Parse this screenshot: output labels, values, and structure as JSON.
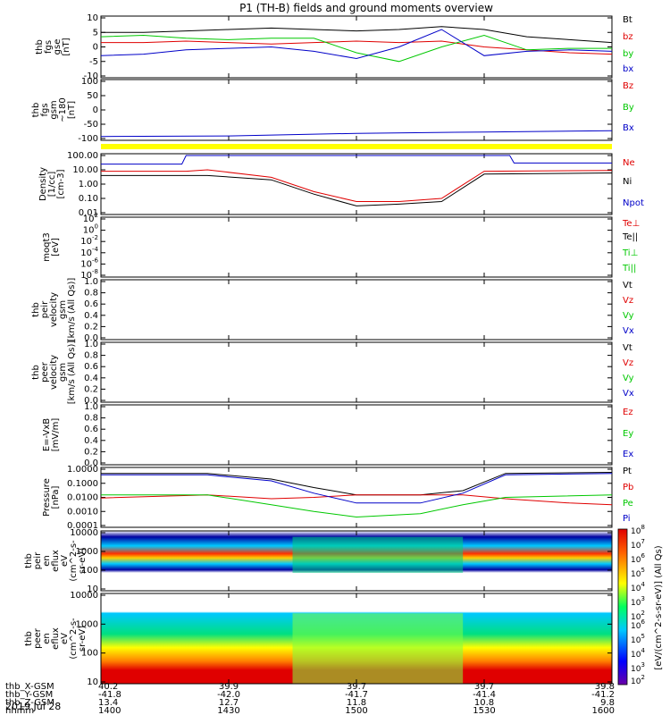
{
  "title": "P1 (TH-B) fields and ground moments overview",
  "date_label": "2019 Jul 28",
  "colorbar": {
    "label": "[eV/(cm^2-s-sr-eV)] (All Qs)",
    "tick_labels": [
      "10^8",
      "10^7",
      "10^6",
      "10^5",
      "10^4",
      "10^3",
      "10^2"
    ]
  },
  "orbit_rows": {
    "labels": [
      "thb_X-GSM",
      "thb_Y-GSM",
      "thb_Z-GSM",
      "hhmm"
    ],
    "columns": [
      [
        "40.2",
        "-41.8",
        "13.4",
        "1400"
      ],
      [
        "39.9",
        "-42.0",
        "12.7",
        "1430"
      ],
      [
        "39.7",
        "-41.7",
        "11.8",
        "1500"
      ],
      [
        "39.7",
        "-41.4",
        "10.8",
        "1530"
      ],
      [
        "39.8",
        "-41.2",
        "9.8",
        "1600"
      ]
    ]
  },
  "colors": {
    "black": "#000000",
    "red": "#e00000",
    "green": "#00c800",
    "blue": "#0000c8",
    "yellow": "#ffff00"
  },
  "chart_data": [
    {
      "type": "line",
      "ylabel_lines": [
        "thb",
        "fgs",
        "gse",
        "[nT]"
      ],
      "ylim": [
        -10,
        10
      ],
      "ticks": [
        "10",
        "5",
        "0",
        "-5",
        "-10"
      ],
      "series": [
        {
          "name": "Bt",
          "color": "black",
          "x": [
            "14:00",
            "14:10",
            "14:20",
            "14:30",
            "14:40",
            "14:50",
            "15:00",
            "15:10",
            "15:20",
            "15:30",
            "15:40",
            "15:50",
            "16:00"
          ],
          "values": [
            5,
            5,
            5.5,
            6,
            6.5,
            6,
            5.5,
            6,
            7,
            6,
            3.5,
            2.5,
            1.5
          ]
        },
        {
          "name": "bz",
          "color": "red",
          "x": [
            "14:00",
            "14:10",
            "14:20",
            "14:30",
            "14:40",
            "14:50",
            "15:00",
            "15:10",
            "15:20",
            "15:30",
            "15:40",
            "15:50",
            "16:00"
          ],
          "values": [
            1.5,
            1.5,
            2,
            1.5,
            1,
            1.5,
            2,
            1.5,
            2,
            0,
            -1,
            -2,
            -2.5
          ]
        },
        {
          "name": "by",
          "color": "green",
          "x": [
            "14:00",
            "14:10",
            "14:20",
            "14:30",
            "14:40",
            "14:50",
            "15:00",
            "15:10",
            "15:20",
            "15:30",
            "15:40",
            "15:50",
            "16:00"
          ],
          "values": [
            3.5,
            4,
            3,
            2.5,
            3,
            3,
            -2,
            -5,
            0,
            4,
            -1,
            -0.5,
            -0.5
          ]
        },
        {
          "name": "bx",
          "color": "blue",
          "x": [
            "14:00",
            "14:10",
            "14:20",
            "14:30",
            "14:40",
            "14:50",
            "15:00",
            "15:10",
            "15:20",
            "15:30",
            "15:40",
            "15:50",
            "16:00"
          ],
          "values": [
            -3,
            -2.5,
            -1,
            -0.5,
            0,
            -1.5,
            -4,
            0,
            6,
            -3,
            -1.5,
            -1,
            -1.5
          ]
        }
      ]
    },
    {
      "type": "line",
      "ylabel_lines": [
        "thb",
        "fgs",
        "gsm",
        "~180",
        "[nT]"
      ],
      "ylim": [
        -120,
        100
      ],
      "ticks": [
        "100",
        "50",
        "0",
        "-50",
        "-100"
      ],
      "series": [
        {
          "name": "Bz",
          "color": "red",
          "x": [
            "14:00",
            "16:00"
          ],
          "values": [
            null,
            null
          ]
        },
        {
          "name": "By",
          "color": "green",
          "x": [
            "14:00",
            "16:00"
          ],
          "values": [
            null,
            null
          ]
        },
        {
          "name": "Bx",
          "color": "blue",
          "x": [
            "14:00",
            "14:30",
            "15:00",
            "15:30",
            "16:00"
          ],
          "values": [
            -112,
            -110,
            -100,
            -95,
            -90
          ]
        }
      ]
    },
    {
      "type": "line",
      "ylabel_lines": [
        "Density",
        "[1/cc]",
        "[cm-3]"
      ],
      "yscale": "log",
      "ylim": [
        0.01,
        100
      ],
      "ticks": [
        "100.00",
        "10.00",
        "1.00",
        "0.10",
        "0.01"
      ],
      "series": [
        {
          "name": "Ne",
          "color": "red",
          "x": [
            "14:00",
            "14:20",
            "14:25",
            "14:40",
            "14:50",
            "15:00",
            "15:10",
            "15:20",
            "15:30",
            "16:00"
          ],
          "values": [
            8,
            8,
            10,
            3,
            0.3,
            0.06,
            0.06,
            0.1,
            8,
            9
          ]
        },
        {
          "name": "Ni",
          "color": "black",
          "x": [
            "14:00",
            "14:20",
            "14:25",
            "14:40",
            "14:50",
            "15:00",
            "15:10",
            "15:20",
            "15:30",
            "16:00"
          ],
          "values": [
            4,
            4,
            4,
            2,
            0.2,
            0.03,
            0.04,
            0.06,
            5,
            6
          ]
        },
        {
          "name": "Npot",
          "color": "blue",
          "x": [
            "14:00",
            "14:19",
            "14:20",
            "15:36",
            "15:37",
            "16:00"
          ],
          "values": [
            25,
            25,
            100,
            100,
            30,
            30
          ]
        }
      ]
    },
    {
      "type": "line",
      "ylabel_lines": [
        "moqt3",
        "[eV]"
      ],
      "yscale": "log",
      "ticks": [
        "10^2",
        "10^0",
        "10^-2",
        "10^-4",
        "10^-6",
        "10^-8"
      ],
      "series": [
        {
          "name": "Te⊥",
          "color": "red",
          "x": [
            "14:00",
            "16:00"
          ],
          "values": [
            null,
            null
          ]
        },
        {
          "name": "Te||",
          "color": "black",
          "x": [
            "14:00",
            "16:00"
          ],
          "values": [
            null,
            null
          ]
        },
        {
          "name": "Ti⊥",
          "color": "green",
          "x": [
            "14:00",
            "16:00"
          ],
          "values": [
            null,
            null
          ]
        },
        {
          "name": "Ti||",
          "color": "green",
          "x": [
            "14:00",
            "16:00"
          ],
          "values": [
            null,
            null
          ]
        }
      ]
    },
    {
      "type": "line",
      "ylabel_lines": [
        "thb",
        "peir",
        "velocity",
        "gsm",
        "[km/s (All Qs)]"
      ],
      "ylim": [
        0,
        1
      ],
      "ticks": [
        "1.0",
        "0.8",
        "0.6",
        "0.4",
        "0.2",
        "0.0"
      ],
      "series": [
        {
          "name": "Vt",
          "color": "black"
        },
        {
          "name": "Vz",
          "color": "red"
        },
        {
          "name": "Vy",
          "color": "green"
        },
        {
          "name": "Vx",
          "color": "blue"
        }
      ]
    },
    {
      "type": "line",
      "ylabel_lines": [
        "thb",
        "peer",
        "velocity",
        "gsm",
        "[km/s (All Qs)]"
      ],
      "ylim": [
        0,
        1
      ],
      "ticks": [
        "1.0",
        "0.8",
        "0.6",
        "0.4",
        "0.2",
        "0.0"
      ],
      "series": [
        {
          "name": "Vt",
          "color": "black"
        },
        {
          "name": "Vz",
          "color": "red"
        },
        {
          "name": "Vy",
          "color": "green"
        },
        {
          "name": "Vx",
          "color": "blue"
        }
      ]
    },
    {
      "type": "line",
      "ylabel_lines": [
        "E=-VxB",
        "[mV/m]"
      ],
      "ylim": [
        0,
        1
      ],
      "ticks": [
        "1.0",
        "0.8",
        "0.6",
        "0.4",
        "0.2",
        "0.0"
      ],
      "series": [
        {
          "name": "Ez",
          "color": "red"
        },
        {
          "name": "Ey",
          "color": "green"
        },
        {
          "name": "Ex",
          "color": "blue"
        }
      ]
    },
    {
      "type": "line",
      "ylabel_lines": [
        "Pressure",
        "[nPa]"
      ],
      "yscale": "log",
      "ylim": [
        0.0001,
        1
      ],
      "ticks": [
        "1.0000",
        "0.1000",
        "0.0100",
        "0.0010",
        "0.0001"
      ],
      "series": [
        {
          "name": "Pt",
          "color": "black",
          "x": [
            "14:00",
            "14:25",
            "14:40",
            "14:50",
            "15:00",
            "15:15",
            "15:25",
            "15:35",
            "16:00"
          ],
          "values": [
            0.5,
            0.5,
            0.2,
            0.05,
            0.015,
            0.015,
            0.03,
            0.5,
            0.6
          ]
        },
        {
          "name": "Pb",
          "color": "red",
          "x": [
            "14:00",
            "14:25",
            "14:40",
            "14:50",
            "15:00",
            "15:15",
            "15:25",
            "15:35",
            "15:50",
            "16:00"
          ],
          "values": [
            0.009,
            0.015,
            0.008,
            0.01,
            0.015,
            0.015,
            0.015,
            0.008,
            0.004,
            0.003
          ]
        },
        {
          "name": "Pe",
          "color": "green",
          "x": [
            "14:00",
            "14:25",
            "14:40",
            "14:50",
            "15:00",
            "15:15",
            "15:25",
            "15:35",
            "16:00"
          ],
          "values": [
            0.015,
            0.015,
            0.003,
            0.001,
            0.0004,
            0.0007,
            0.003,
            0.01,
            0.015
          ]
        },
        {
          "name": "Pi",
          "color": "blue",
          "x": [
            "14:00",
            "14:25",
            "14:40",
            "14:50",
            "15:00",
            "15:15",
            "15:25",
            "15:35",
            "16:00"
          ],
          "values": [
            0.4,
            0.4,
            0.15,
            0.02,
            0.004,
            0.004,
            0.02,
            0.4,
            0.5
          ]
        }
      ]
    },
    {
      "type": "heatmap",
      "ylabel_lines": [
        "thb",
        "peir",
        "en",
        "eflux",
        "eV",
        "(cm^2-s-",
        "sr-eV)"
      ],
      "yscale": "log",
      "ticks": [
        "10000",
        "1000",
        "100",
        "10"
      ]
    },
    {
      "type": "heatmap",
      "ylabel_lines": [
        "thb",
        "peer",
        "en",
        "eflux",
        "eV",
        "(cm^2-s-",
        "sr-eV)"
      ],
      "yscale": "log",
      "ticks": [
        "10000",
        "1000",
        "100",
        "10"
      ]
    }
  ]
}
